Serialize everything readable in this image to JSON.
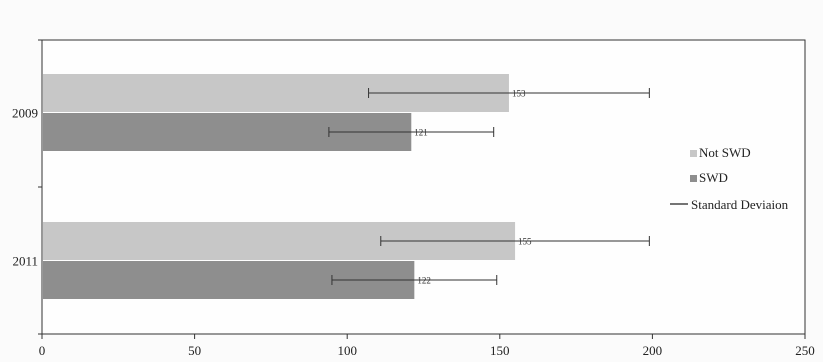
{
  "chart_data": {
    "type": "bar",
    "orientation": "horizontal",
    "categories": [
      "2009",
      "2011"
    ],
    "series": [
      {
        "name": "Not SWD",
        "values": [
          153,
          155
        ],
        "sd": [
          46,
          44
        ],
        "color": "#c7c7c7"
      },
      {
        "name": "SWD",
        "values": [
          121,
          122
        ],
        "sd": [
          27,
          27
        ],
        "color": "#8e8e8e"
      }
    ],
    "error_bar_legend": "Standard Deviaion",
    "xlim": [
      0,
      250
    ],
    "xticks": [
      "0",
      "50",
      "100",
      "150",
      "200",
      "250"
    ],
    "title": "",
    "xlabel": "",
    "ylabel": "",
    "grid": false,
    "legend_position": "right"
  }
}
